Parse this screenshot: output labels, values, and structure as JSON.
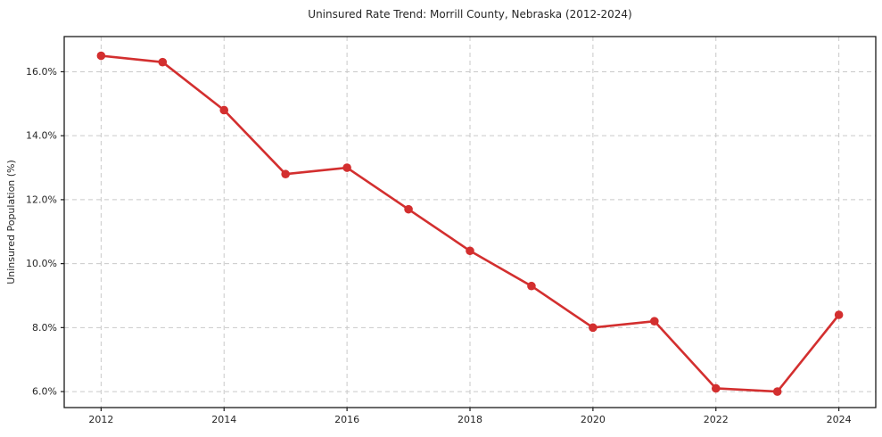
{
  "chart_data": {
    "type": "line",
    "title": "Uninsured Rate Trend: Morrill County, Nebraska (2012-2024)",
    "xlabel": "",
    "ylabel": "Uninsured Population (%)",
    "series": [
      {
        "name": "Uninsured Rate",
        "x": [
          2012,
          2013,
          2014,
          2015,
          2016,
          2017,
          2018,
          2019,
          2020,
          2021,
          2022,
          2023,
          2024
        ],
        "y": [
          16.5,
          16.3,
          14.8,
          12.8,
          13.0,
          11.7,
          10.4,
          9.3,
          8.0,
          8.2,
          6.1,
          6.0,
          8.4
        ]
      }
    ],
    "xticks": [
      2012,
      2014,
      2016,
      2018,
      2020,
      2022,
      2024
    ],
    "xtick_labels": [
      "2012",
      "2014",
      "2016",
      "2018",
      "2020",
      "2022",
      "2024"
    ],
    "yticks": [
      6,
      8,
      10,
      12,
      14,
      16
    ],
    "ytick_labels": [
      "6.0%",
      "8.0%",
      "10.0%",
      "12.0%",
      "14.0%",
      "16.0%"
    ],
    "xlim": [
      2011.4,
      2024.6
    ],
    "ylim": [
      5.5,
      17.1
    ],
    "grid": true,
    "grid_style": "dashed",
    "legend": false,
    "colors": {
      "line": "#d32f2f",
      "marker": "#d32f2f",
      "grid": "#c9c9c9",
      "spine": "#1a1a1a",
      "text": "#262626",
      "background": "#ffffff"
    }
  }
}
